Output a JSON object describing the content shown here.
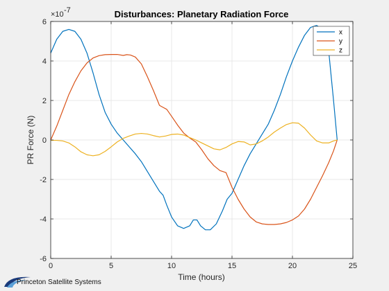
{
  "chart_data": {
    "type": "line",
    "title": "Disturbances: Planetary Radiation Force",
    "xlabel": "Time (hours)",
    "ylabel": "PR Force (N)",
    "y_exponent_label": "×10",
    "y_exponent": "-7",
    "xlim": [
      0,
      25
    ],
    "ylim": [
      -6,
      6
    ],
    "xticks": [
      0,
      5,
      10,
      15,
      20,
      25
    ],
    "yticks": [
      -6,
      -4,
      -2,
      0,
      2,
      4,
      6
    ],
    "xtick_labels": [
      "0",
      "5",
      "10",
      "15",
      "20",
      "25"
    ],
    "ytick_labels": [
      "-6",
      "-4",
      "-2",
      "0",
      "2",
      "4",
      "6"
    ],
    "grid": true,
    "legend_position": "top-right",
    "series": [
      {
        "name": "x",
        "color": "#0072BD",
        "points": [
          [
            0,
            4.4
          ],
          [
            0.5,
            5.1
          ],
          [
            1,
            5.5
          ],
          [
            1.5,
            5.6
          ],
          [
            2,
            5.5
          ],
          [
            2.5,
            5.1
          ],
          [
            3,
            4.4
          ],
          [
            3.5,
            3.4
          ],
          [
            4,
            2.3
          ],
          [
            4.5,
            1.4
          ],
          [
            5,
            0.8
          ],
          [
            5.5,
            0.35
          ],
          [
            6,
            0.0
          ],
          [
            6.5,
            -0.35
          ],
          [
            7,
            -0.7
          ],
          [
            7.5,
            -1.1
          ],
          [
            8,
            -1.6
          ],
          [
            8.5,
            -2.1
          ],
          [
            9,
            -2.6
          ],
          [
            9.3,
            -2.8
          ],
          [
            9.6,
            -3.3
          ],
          [
            10,
            -3.9
          ],
          [
            10.5,
            -4.35
          ],
          [
            11,
            -4.48
          ],
          [
            11.5,
            -4.35
          ],
          [
            11.8,
            -4.05
          ],
          [
            12.1,
            -4.05
          ],
          [
            12.4,
            -4.35
          ],
          [
            12.8,
            -4.55
          ],
          [
            13.2,
            -4.55
          ],
          [
            13.7,
            -4.25
          ],
          [
            14.2,
            -3.6
          ],
          [
            14.6,
            -3.0
          ],
          [
            15,
            -2.7
          ],
          [
            15.5,
            -2.0
          ],
          [
            16,
            -1.3
          ],
          [
            16.5,
            -0.7
          ],
          [
            17,
            -0.2
          ],
          [
            17.5,
            0.3
          ],
          [
            18,
            0.8
          ],
          [
            18.5,
            1.5
          ],
          [
            19,
            2.3
          ],
          [
            19.5,
            3.2
          ],
          [
            20,
            4.0
          ],
          [
            20.5,
            4.7
          ],
          [
            21,
            5.3
          ],
          [
            21.5,
            5.7
          ],
          [
            22,
            5.8
          ],
          [
            22.5,
            5.6
          ],
          [
            23,
            4.5
          ],
          [
            23.4,
            2.0
          ],
          [
            23.7,
            0.0
          ]
        ]
      },
      {
        "name": "y",
        "color": "#D95319",
        "points": [
          [
            0,
            0.0
          ],
          [
            0.5,
            0.7
          ],
          [
            1,
            1.5
          ],
          [
            1.5,
            2.3
          ],
          [
            2,
            2.95
          ],
          [
            2.5,
            3.5
          ],
          [
            3,
            3.9
          ],
          [
            3.5,
            4.15
          ],
          [
            4,
            4.27
          ],
          [
            4.5,
            4.32
          ],
          [
            5,
            4.33
          ],
          [
            5.5,
            4.33
          ],
          [
            6,
            4.28
          ],
          [
            6.3,
            4.32
          ],
          [
            6.6,
            4.3
          ],
          [
            7,
            4.2
          ],
          [
            7.5,
            3.85
          ],
          [
            8,
            3.2
          ],
          [
            8.5,
            2.5
          ],
          [
            9,
            1.75
          ],
          [
            9.3,
            1.65
          ],
          [
            9.6,
            1.55
          ],
          [
            10,
            1.2
          ],
          [
            10.5,
            0.75
          ],
          [
            11,
            0.35
          ],
          [
            11.5,
            0.1
          ],
          [
            12,
            -0.1
          ],
          [
            12.5,
            -0.5
          ],
          [
            13,
            -0.95
          ],
          [
            13.5,
            -1.3
          ],
          [
            14,
            -1.55
          ],
          [
            14.5,
            -1.65
          ],
          [
            15,
            -2.4
          ],
          [
            15.5,
            -3.0
          ],
          [
            16,
            -3.5
          ],
          [
            16.5,
            -3.9
          ],
          [
            17,
            -4.15
          ],
          [
            17.5,
            -4.25
          ],
          [
            18,
            -4.28
          ],
          [
            18.5,
            -4.28
          ],
          [
            19,
            -4.25
          ],
          [
            19.5,
            -4.18
          ],
          [
            20,
            -4.05
          ],
          [
            20.5,
            -3.85
          ],
          [
            21,
            -3.5
          ],
          [
            21.5,
            -3.0
          ],
          [
            22,
            -2.4
          ],
          [
            22.5,
            -1.8
          ],
          [
            23,
            -1.15
          ],
          [
            23.4,
            -0.55
          ],
          [
            23.7,
            0.0
          ]
        ]
      },
      {
        "name": "z",
        "color": "#EDB120",
        "points": [
          [
            0,
            -0.02
          ],
          [
            0.5,
            -0.02
          ],
          [
            1,
            -0.05
          ],
          [
            1.5,
            -0.15
          ],
          [
            2,
            -0.35
          ],
          [
            2.5,
            -0.6
          ],
          [
            3,
            -0.75
          ],
          [
            3.5,
            -0.8
          ],
          [
            4,
            -0.75
          ],
          [
            4.5,
            -0.58
          ],
          [
            5,
            -0.35
          ],
          [
            5.5,
            -0.1
          ],
          [
            6,
            0.08
          ],
          [
            6.5,
            0.2
          ],
          [
            7,
            0.3
          ],
          [
            7.5,
            0.33
          ],
          [
            8,
            0.3
          ],
          [
            8.5,
            0.22
          ],
          [
            9,
            0.15
          ],
          [
            9.5,
            0.2
          ],
          [
            10,
            0.28
          ],
          [
            10.5,
            0.3
          ],
          [
            11,
            0.25
          ],
          [
            11.5,
            0.12
          ],
          [
            12,
            0.0
          ],
          [
            12.5,
            -0.15
          ],
          [
            13,
            -0.3
          ],
          [
            13.5,
            -0.45
          ],
          [
            14,
            -0.5
          ],
          [
            14.5,
            -0.38
          ],
          [
            15,
            -0.2
          ],
          [
            15.5,
            -0.08
          ],
          [
            16,
            -0.1
          ],
          [
            16.5,
            -0.25
          ],
          [
            17,
            -0.2
          ],
          [
            17.5,
            -0.05
          ],
          [
            18,
            0.15
          ],
          [
            18.5,
            0.4
          ],
          [
            19,
            0.6
          ],
          [
            19.5,
            0.78
          ],
          [
            20,
            0.87
          ],
          [
            20.5,
            0.85
          ],
          [
            21,
            0.6
          ],
          [
            21.5,
            0.25
          ],
          [
            22,
            -0.05
          ],
          [
            22.5,
            -0.15
          ],
          [
            23,
            -0.15
          ],
          [
            23.4,
            -0.05
          ],
          [
            23.7,
            0.0
          ]
        ]
      }
    ]
  },
  "watermark": {
    "text": "Princeton Satellite Systems",
    "colors": {
      "swoosh_dark": "#1a3a7a",
      "swoosh_light": "#5aa0d8"
    }
  }
}
